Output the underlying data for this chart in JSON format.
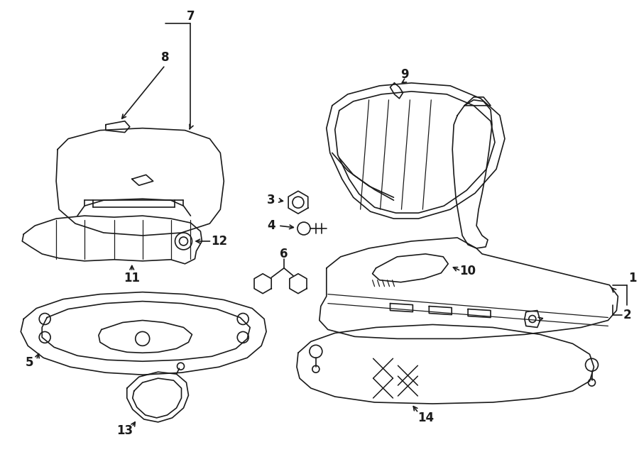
{
  "bg_color": "#ffffff",
  "line_color": "#1a1a1a",
  "lw": 1.2,
  "fig_w": 9.0,
  "fig_h": 6.61,
  "dpi": 100
}
